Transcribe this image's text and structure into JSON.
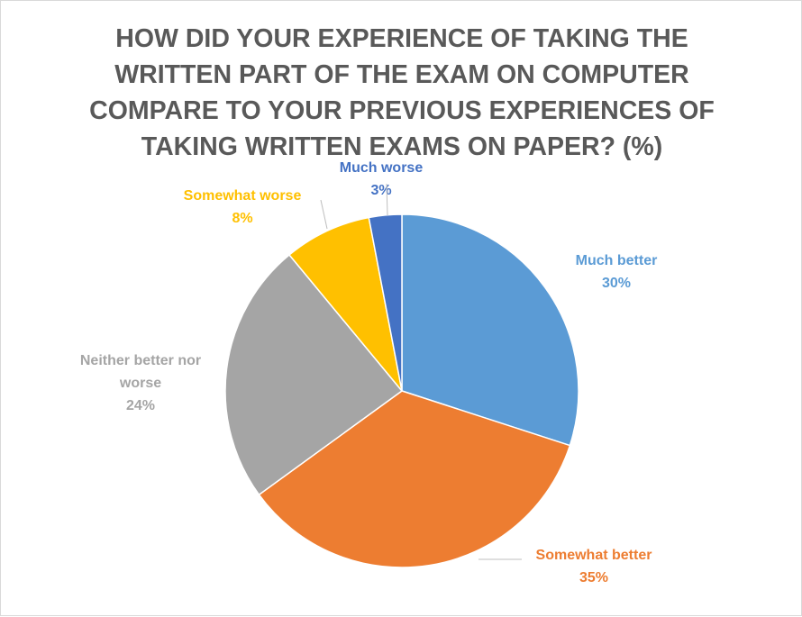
{
  "chart_data": {
    "type": "pie",
    "title_lines": [
      "HOW DID YOUR EXPERIENCE OF TAKING THE",
      "WRITTEN PART OF THE EXAM ON COMPUTER",
      "COMPARE TO YOUR PREVIOUS EXPERIENCES OF",
      "TAKING WRITTEN EXAMS ON PAPER?  (%)"
    ],
    "slices": [
      {
        "label_lines": [
          "Much better"
        ],
        "value": 30,
        "value_label": "30%",
        "color": "#5b9bd5"
      },
      {
        "label_lines": [
          "Somewhat better"
        ],
        "value": 35,
        "value_label": "35%",
        "color": "#ed7d31"
      },
      {
        "label_lines": [
          "Neither better nor",
          "worse"
        ],
        "value": 24,
        "value_label": "24%",
        "color": "#a5a5a5"
      },
      {
        "label_lines": [
          "Somewhat worse"
        ],
        "value": 8,
        "value_label": "8%",
        "color": "#ffc000"
      },
      {
        "label_lines": [
          "Much worse"
        ],
        "value": 3,
        "value_label": "3%",
        "color": "#4472c4"
      }
    ],
    "legend": "none"
  }
}
